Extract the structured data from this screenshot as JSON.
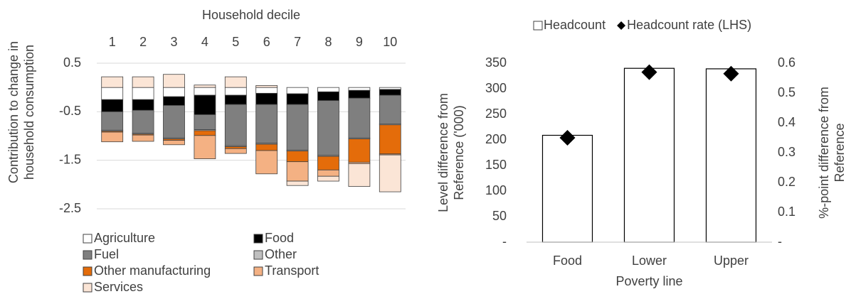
{
  "chart_data": [
    {
      "type": "stacked_bar",
      "xlabel": "Household decile",
      "ylabel": [
        "Contribution to  change in",
        "household consumption"
      ],
      "categories": [
        "1",
        "2",
        "3",
        "4",
        "5",
        "6",
        "7",
        "8",
        "9",
        "10"
      ],
      "ylim": [
        -2.5,
        0.5
      ],
      "yticks": [
        0.5,
        -0.5,
        -1.5,
        -2.5
      ],
      "grid": true,
      "legend": "bottom",
      "series": [
        {
          "name": "Agriculture",
          "color": "#ffffff",
          "values": [
            -0.25,
            -0.25,
            -0.19,
            -0.16,
            -0.16,
            -0.12,
            -0.13,
            -0.09,
            -0.06,
            -0.04
          ]
        },
        {
          "name": "Food",
          "color": "#000000",
          "values": [
            -0.25,
            -0.22,
            -0.18,
            -0.4,
            -0.19,
            -0.23,
            -0.22,
            -0.18,
            -0.16,
            -0.12
          ]
        },
        {
          "name": "Fuel",
          "color": "#7f7f7f",
          "values": [
            -0.38,
            -0.47,
            -0.67,
            -0.31,
            -0.85,
            -0.8,
            -0.94,
            -1.13,
            -0.82,
            -0.59
          ]
        },
        {
          "name": "Other",
          "color": "#bfbfbf",
          "values": [
            -0.02,
            -0.02,
            -0.02,
            -0.02,
            -0.02,
            -0.02,
            -0.02,
            -0.02,
            -0.02,
            -0.02
          ]
        },
        {
          "name": "Other manufacturing",
          "color": "#e46c0a",
          "values": [
            -0.02,
            -0.02,
            -0.03,
            -0.1,
            -0.04,
            -0.13,
            -0.22,
            -0.28,
            -0.48,
            -0.6
          ]
        },
        {
          "name": "Transport",
          "color": "#f4b183",
          "values": [
            -0.2,
            -0.13,
            -0.09,
            -0.48,
            -0.1,
            -0.48,
            -0.4,
            -0.13,
            -0.03,
            -0.02
          ]
        },
        {
          "name": "Services",
          "color": "#fbe5d6",
          "values": [
            0.22,
            0.22,
            0.27,
            0.05,
            0.22,
            0.04,
            -0.09,
            -0.1,
            -0.47,
            -0.76
          ]
        }
      ]
    },
    {
      "type": "bar_scatter",
      "xlabel": "Poverty line",
      "ylabel": [
        "Level difference from",
        "Reference ('000)"
      ],
      "y2label": [
        "%-point difference from",
        "Reference"
      ],
      "categories": [
        "Food",
        "Lower",
        "Upper"
      ],
      "ylim": [
        0,
        350
      ],
      "yticks": [
        {
          "value": 0,
          "label": "-"
        },
        50,
        100,
        150,
        200,
        250,
        300,
        350
      ],
      "y2lim": [
        0,
        0.6
      ],
      "y2ticks": [
        {
          "value": 0,
          "label": "-"
        },
        0.1,
        0.2,
        0.3,
        0.4,
        0.5,
        0.6
      ],
      "legend": "top",
      "series": [
        {
          "name": "Headcount",
          "color": "#ffffff",
          "values": [
            209,
            340,
            339
          ]
        },
        {
          "name": "Headcount rate (LHS)",
          "color": "#000000",
          "axis": "y2",
          "values": [
            0.35,
            0.57,
            0.565
          ]
        }
      ]
    }
  ]
}
